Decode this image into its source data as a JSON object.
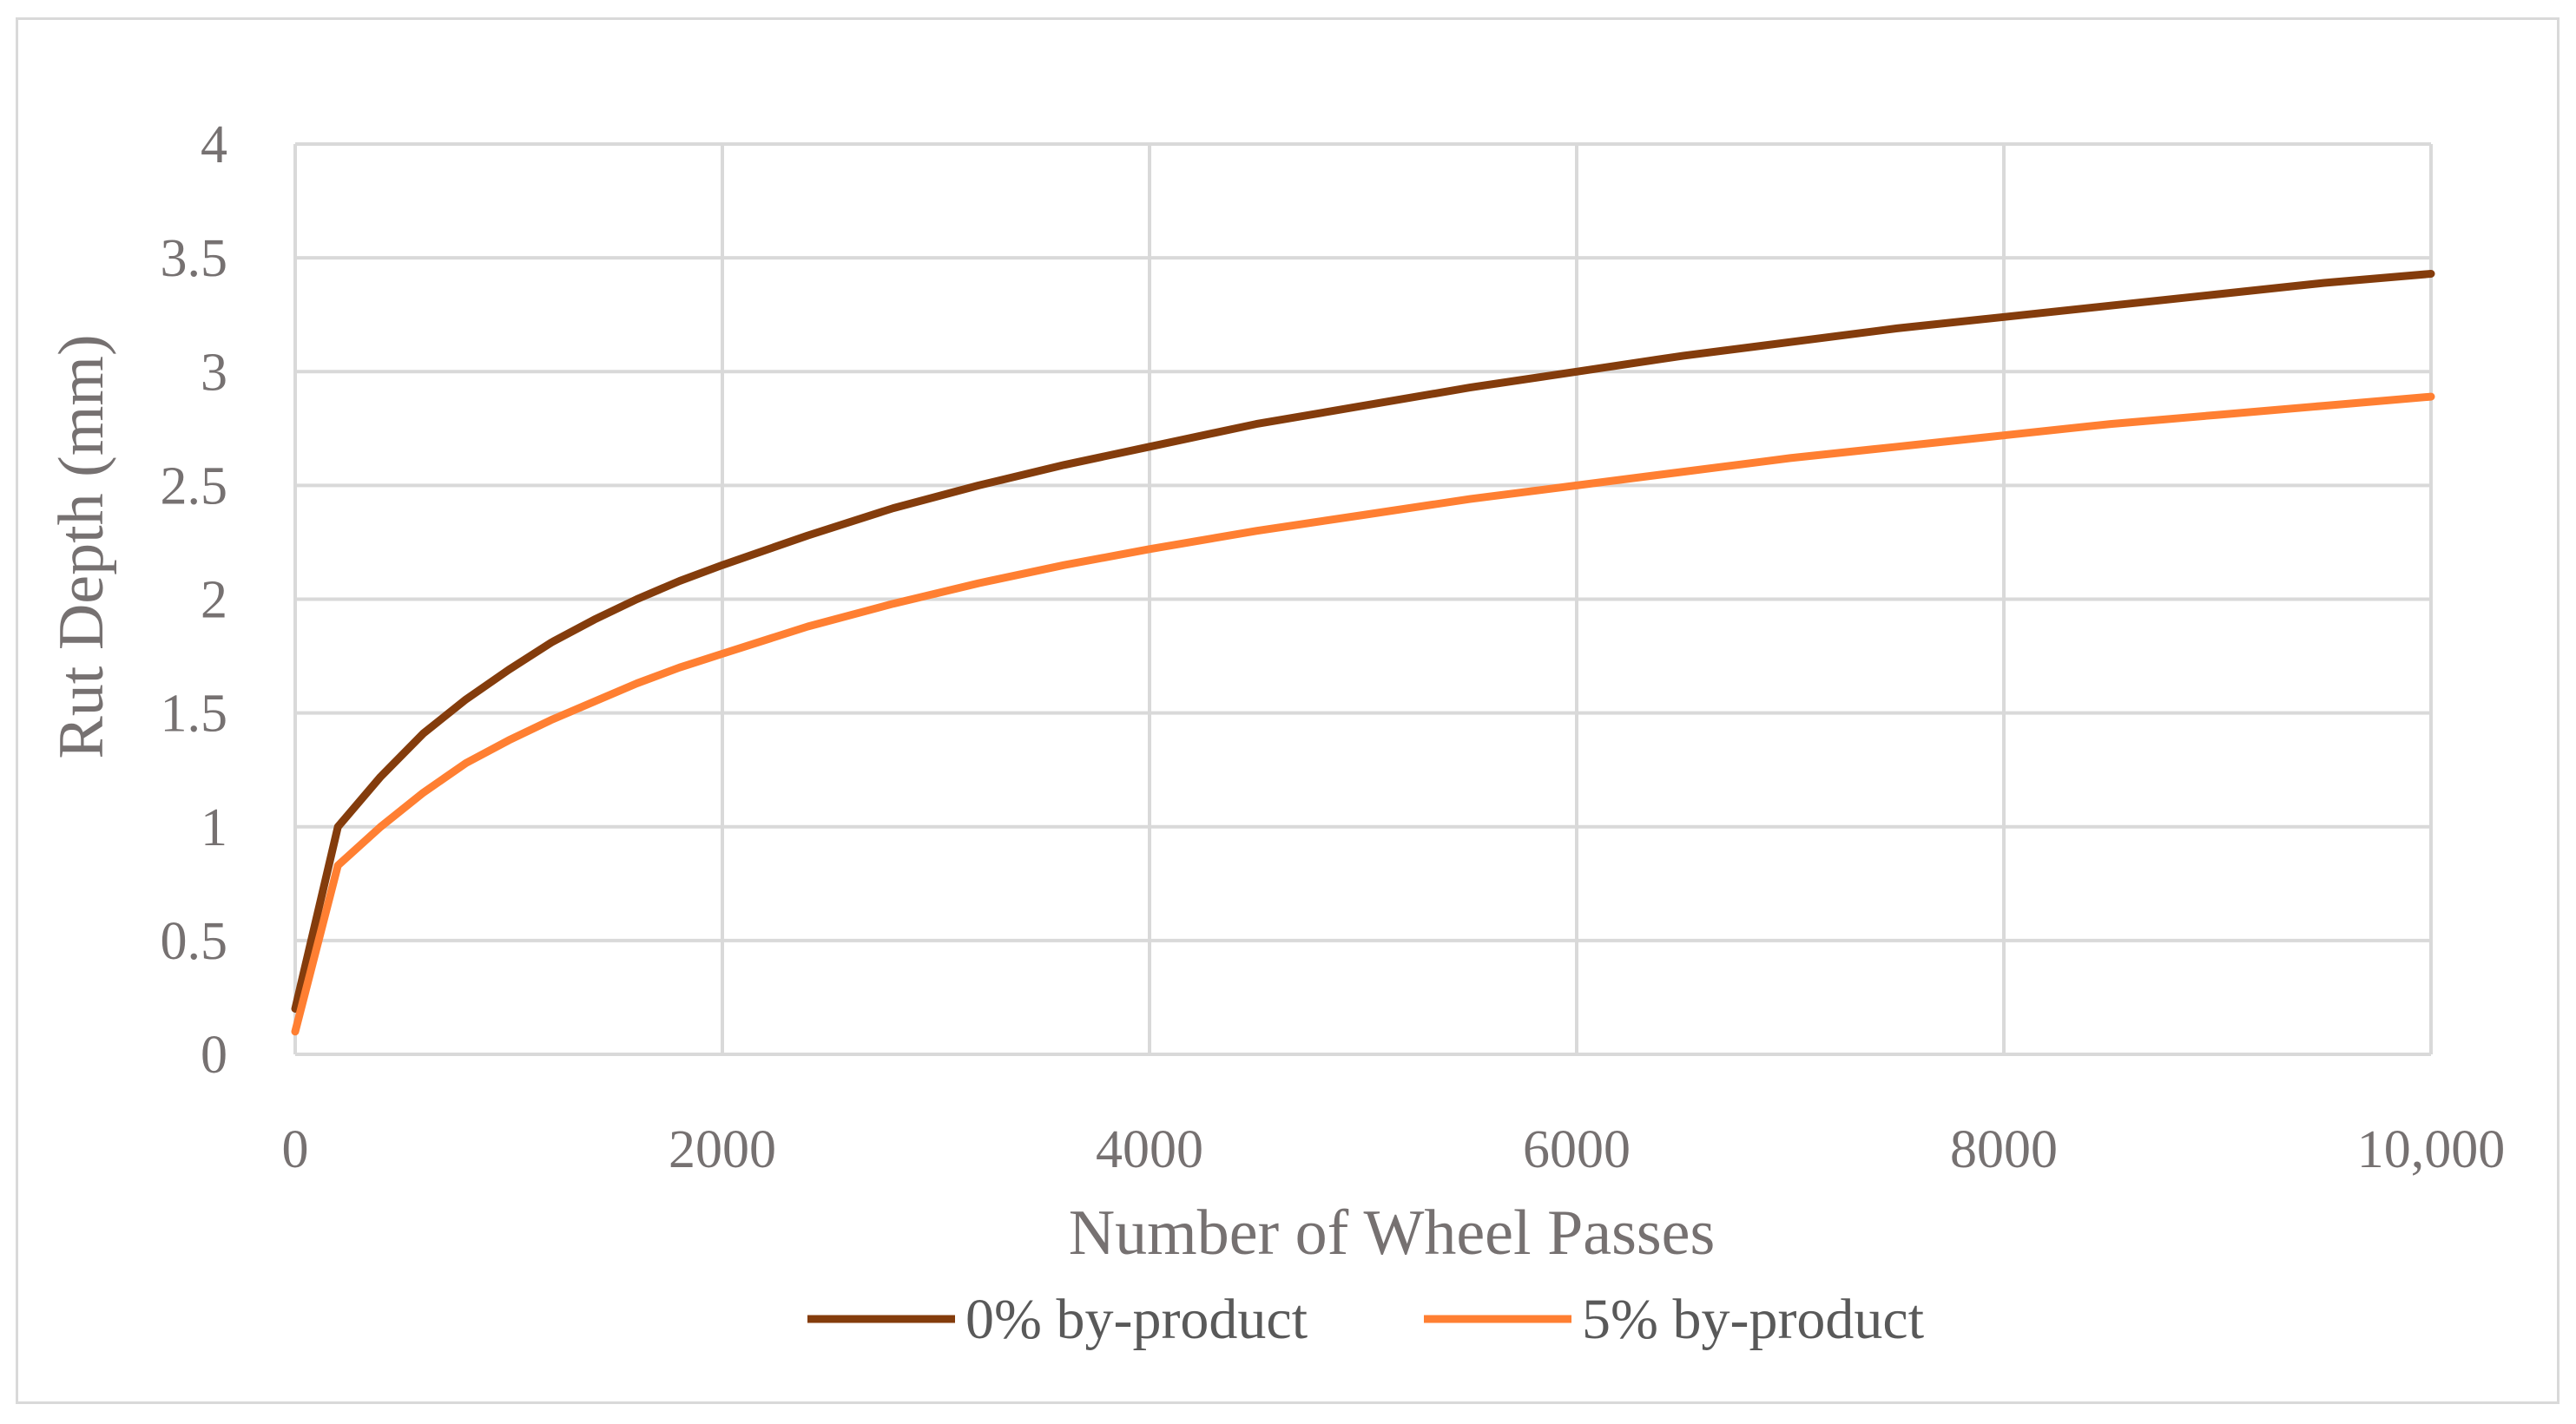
{
  "chart_data": {
    "type": "line",
    "title": "",
    "xlabel": "Number of Wheel Passes",
    "ylabel": "Rut Depth (mm)",
    "xlim": [
      0,
      10000
    ],
    "ylim": [
      0,
      4
    ],
    "x_ticks": [
      0,
      2000,
      4000,
      6000,
      8000,
      10000
    ],
    "x_tick_labels": [
      "0",
      "2000",
      "4000",
      "6000",
      "8000",
      "10,000"
    ],
    "y_ticks": [
      0,
      0.5,
      1,
      1.5,
      2,
      2.5,
      3,
      3.5,
      4
    ],
    "y_tick_labels": [
      "0",
      "0.5",
      "1",
      "1.5",
      "2",
      "2.5",
      "3",
      "3.5",
      "4"
    ],
    "grid": true,
    "legend_position": "bottom",
    "x": [
      0,
      200,
      400,
      600,
      800,
      1000,
      1200,
      1400,
      1600,
      1800,
      2000,
      2400,
      2800,
      3200,
      3600,
      4000,
      4500,
      5000,
      5500,
      6000,
      6500,
      7000,
      7500,
      8000,
      8500,
      9000,
      9500,
      10000
    ],
    "series": [
      {
        "name": "0% by-product",
        "color": "#843c0c",
        "values": [
          0.2,
          1.0,
          1.22,
          1.41,
          1.56,
          1.69,
          1.81,
          1.91,
          2.0,
          2.08,
          2.15,
          2.28,
          2.4,
          2.5,
          2.59,
          2.67,
          2.77,
          2.85,
          2.93,
          3.0,
          3.07,
          3.13,
          3.19,
          3.24,
          3.29,
          3.34,
          3.39,
          3.43
        ]
      },
      {
        "name": "5% by-product",
        "color": "#ff7f32",
        "values": [
          0.1,
          0.83,
          1.0,
          1.15,
          1.28,
          1.38,
          1.47,
          1.55,
          1.63,
          1.7,
          1.76,
          1.88,
          1.98,
          2.07,
          2.15,
          2.22,
          2.3,
          2.37,
          2.44,
          2.5,
          2.56,
          2.62,
          2.67,
          2.72,
          2.77,
          2.81,
          2.85,
          2.89
        ]
      }
    ]
  }
}
